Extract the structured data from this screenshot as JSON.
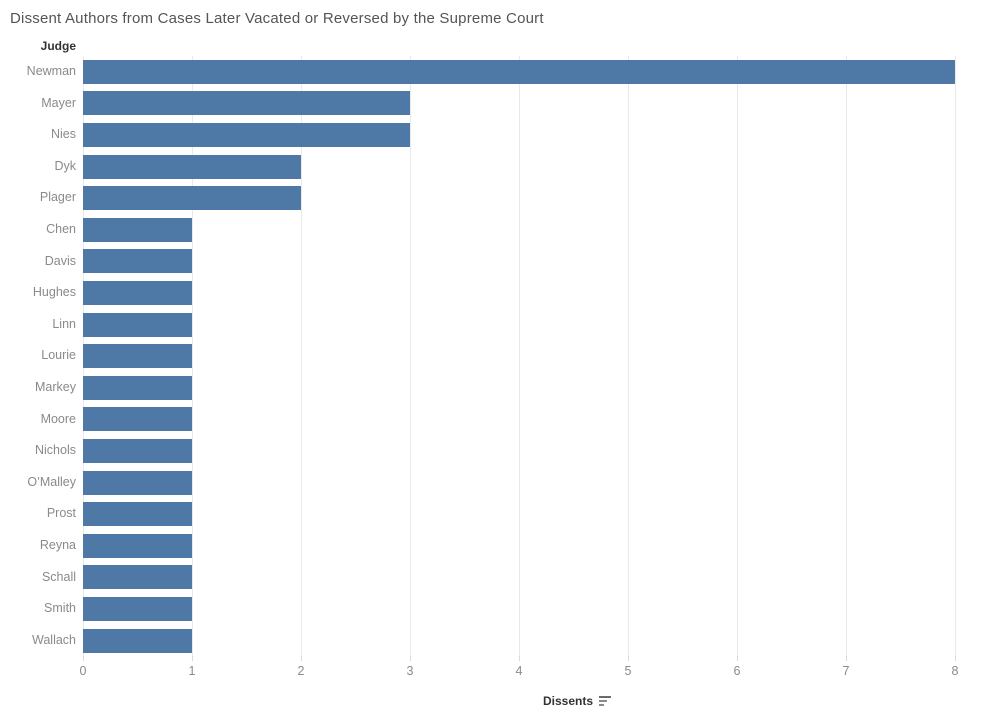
{
  "title": "Dissent Authors from Cases Later Vacated or Reversed by the Supreme Court",
  "row_header": "Judge",
  "axis": {
    "label": "Dissents",
    "sort_icon": "sort-descending-icon"
  },
  "colors": {
    "bar": "#4e79a7",
    "gridline": "#e9e9e9",
    "tick_label": "#8a8a8a",
    "title": "#555555",
    "header": "#333333"
  },
  "chart_data": {
    "type": "bar",
    "orientation": "horizontal",
    "title": "Dissent Authors from Cases Later Vacated or Reversed by the Supreme Court",
    "categories": [
      "Newman",
      "Mayer",
      "Nies",
      "Dyk",
      "Plager",
      "Chen",
      "Davis",
      "Hughes",
      "Linn",
      "Lourie",
      "Markey",
      "Moore",
      "Nichols",
      "O’Malley",
      "Prost",
      "Reyna",
      "Schall",
      "Smith",
      "Wallach"
    ],
    "values": [
      8,
      3,
      3,
      2,
      2,
      1,
      1,
      1,
      1,
      1,
      1,
      1,
      1,
      1,
      1,
      1,
      1,
      1,
      1
    ],
    "xlabel": "Dissents",
    "ylabel": "Judge",
    "xlim": [
      0,
      8.4
    ],
    "xticks": [
      0,
      1,
      2,
      3,
      4,
      5,
      6,
      7,
      8
    ],
    "grid": "vertical",
    "legend": "none",
    "sort": "descending"
  }
}
